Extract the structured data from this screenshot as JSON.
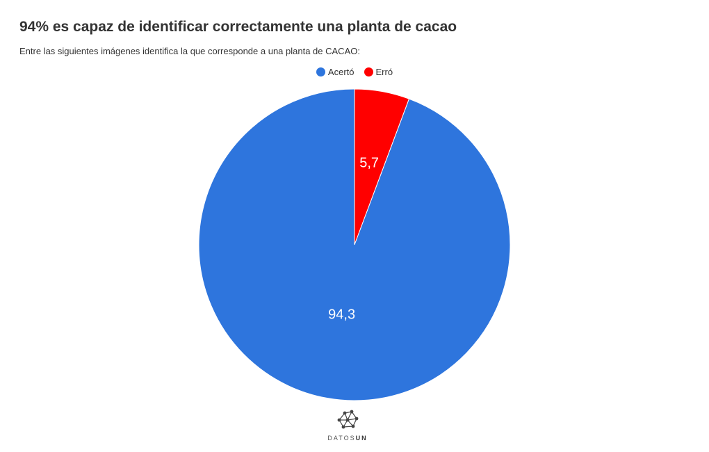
{
  "chart_data": {
    "type": "pie",
    "title": "94% es capaz de identificar correctamente una planta de cacao",
    "subtitle": "Entre las siguientes imágenes identifica la que corresponde a una planta de CACAO:",
    "legend_position": "top-center",
    "slices": [
      {
        "name": "Acertó",
        "value": 94.3,
        "label": "94,3",
        "color": "#2e75dd"
      },
      {
        "name": "Erró",
        "value": 5.7,
        "label": "5,7",
        "color": "#ff0000"
      }
    ]
  },
  "logo": {
    "text_light": "DATOS",
    "text_bold": "UN",
    "icon": "network-nodes-icon"
  }
}
